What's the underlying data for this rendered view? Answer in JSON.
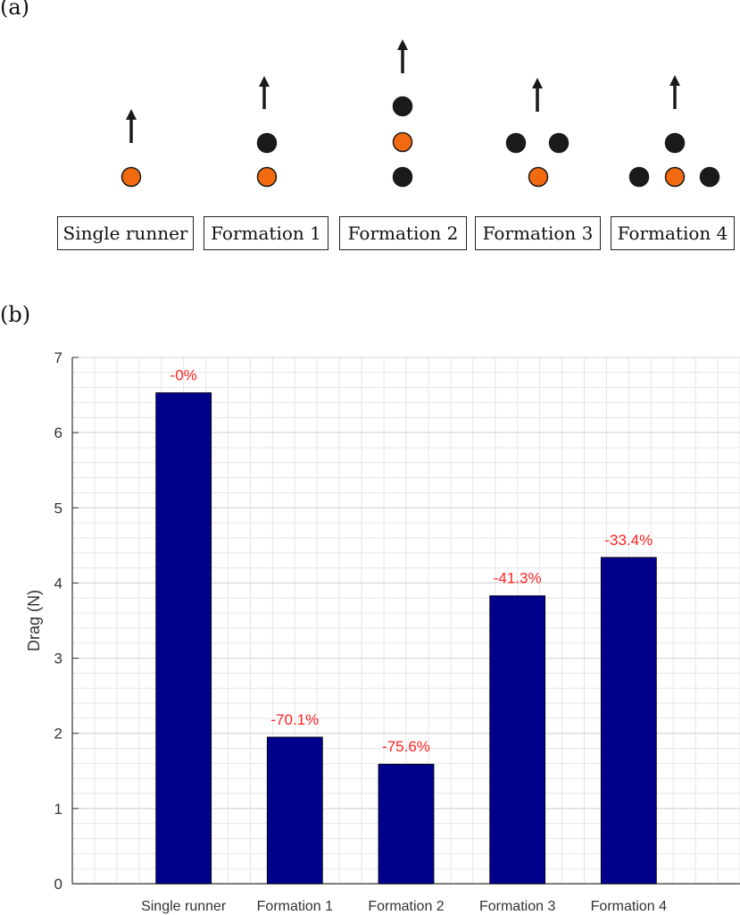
{
  "panel_a": {
    "label": "(a)",
    "formations": [
      {
        "label": "Single runner"
      },
      {
        "label": "Formation 1"
      },
      {
        "label": "Formation 2"
      },
      {
        "label": "Formation 3"
      },
      {
        "label": "Formation 4"
      }
    ],
    "colors": {
      "subject": "#f26a10",
      "other": "#1a1a1a"
    }
  },
  "panel_b": {
    "label": "(b)"
  },
  "chart_data": {
    "type": "bar",
    "categories": [
      "Single runner",
      "Formation 1",
      "Formation 2",
      "Formation 3",
      "Formation 4"
    ],
    "values": [
      6.53,
      1.95,
      1.59,
      3.83,
      4.34
    ],
    "data_labels": [
      "-0%",
      "-70.1%",
      "-75.6%",
      "-41.3%",
      "-33.4%"
    ],
    "title": "",
    "xlabel": "",
    "ylabel": "Drag (N)",
    "ylim": [
      0,
      7
    ],
    "xlim": [
      0,
      6
    ],
    "yticks": [
      "0",
      "1",
      "2",
      "3",
      "4",
      "5",
      "6",
      "7"
    ],
    "grid": "major and minor",
    "bar_color": "#00008b",
    "label_color": "#ff2020"
  }
}
